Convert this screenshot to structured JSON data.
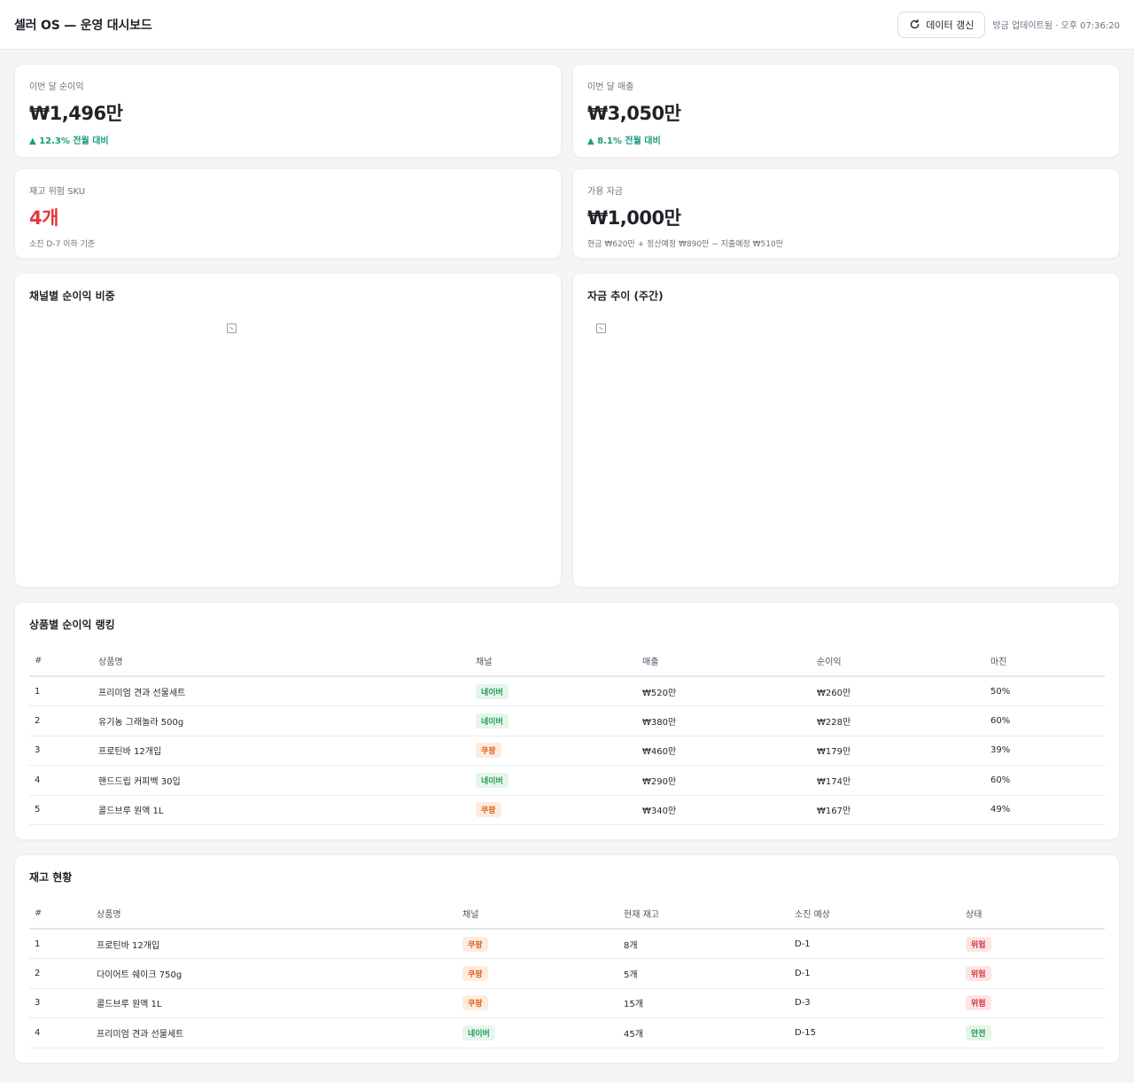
{
  "header": {
    "title": "셀러 OS — 운영 대시보드",
    "refresh_label": "데이터 갱신",
    "updated_text": "방금 업데이트됨 · 오후 07:36:20"
  },
  "kpis": {
    "net_profit": {
      "label": "이번 달 순이익",
      "value": "₩1,496만",
      "delta": "▲ 12.3% 전월 대비"
    },
    "revenue": {
      "label": "이번 달 매출",
      "value": "₩3,050만",
      "delta": "▲ 8.1% 전월 대비"
    },
    "risk_sku": {
      "label": "재고 위험 SKU",
      "value": "4개",
      "sub": "소진 D-7 이하 기준"
    },
    "funds": {
      "label": "가용 자금",
      "value": "₩1,000만",
      "sub": "현금 ₩620만 + 정산예정 ₩890만 − 지출예정 ₩510만"
    }
  },
  "charts": {
    "channel_share": {
      "title": "채널별 순이익 비중"
    },
    "funds_trend": {
      "title": "자금 추이 (주간)"
    }
  },
  "ranking": {
    "title": "상품별 순이익 랭킹",
    "columns": [
      "#",
      "상품명",
      "채널",
      "매출",
      "순이익",
      "마진"
    ],
    "rows": [
      {
        "rank": "1",
        "name": "프리미엄 견과 선물세트",
        "channel": "네이버",
        "channel_type": "naver",
        "revenue": "₩520만",
        "profit": "₩260만",
        "margin": "50%"
      },
      {
        "rank": "2",
        "name": "유기농 그래놀라 500g",
        "channel": "네이버",
        "channel_type": "naver",
        "revenue": "₩380만",
        "profit": "₩228만",
        "margin": "60%"
      },
      {
        "rank": "3",
        "name": "프로틴바 12개입",
        "channel": "쿠팡",
        "channel_type": "coupang",
        "revenue": "₩460만",
        "profit": "₩179만",
        "margin": "39%"
      },
      {
        "rank": "4",
        "name": "핸드드립 커피백 30입",
        "channel": "네이버",
        "channel_type": "naver",
        "revenue": "₩290만",
        "profit": "₩174만",
        "margin": "60%"
      },
      {
        "rank": "5",
        "name": "콜드브루 원액 1L",
        "channel": "쿠팡",
        "channel_type": "coupang",
        "revenue": "₩340만",
        "profit": "₩167만",
        "margin": "49%"
      }
    ]
  },
  "inventory": {
    "title": "재고 현황",
    "columns": [
      "#",
      "상품명",
      "채널",
      "현재 재고",
      "소진 예상",
      "상태"
    ],
    "rows": [
      {
        "rank": "1",
        "name": "프로틴바 12개입",
        "channel": "쿠팡",
        "channel_type": "coupang",
        "stock": "8개",
        "depletion": "D-1",
        "status": "위험",
        "status_type": "danger"
      },
      {
        "rank": "2",
        "name": "다이어트 쉐이크 750g",
        "channel": "쿠팡",
        "channel_type": "coupang",
        "stock": "5개",
        "depletion": "D-1",
        "status": "위험",
        "status_type": "danger"
      },
      {
        "rank": "3",
        "name": "콜드브루 원액 1L",
        "channel": "쿠팡",
        "channel_type": "coupang",
        "stock": "15개",
        "depletion": "D-3",
        "status": "위험",
        "status_type": "danger"
      },
      {
        "rank": "4",
        "name": "프리미엄 견과 선물세트",
        "channel": "네이버",
        "channel_type": "naver",
        "stock": "45개",
        "depletion": "D-15",
        "status": "안전",
        "status_type": "safe"
      }
    ]
  },
  "colors": {
    "accent_positive": "#1a9b7e",
    "danger": "#e5383b",
    "naver": "#1f9d55",
    "coupang": "#e0601a"
  },
  "icons": {
    "refresh": "refresh-icon",
    "broken_image": "broken-image-icon"
  }
}
